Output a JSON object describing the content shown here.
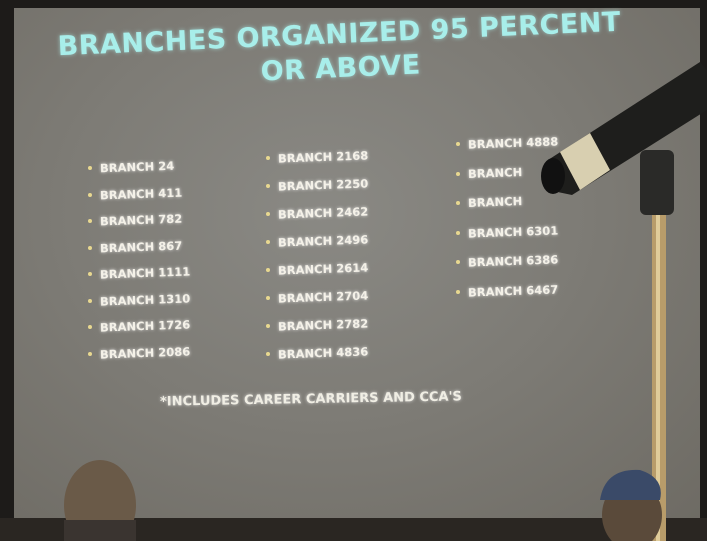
{
  "title": "BRANCHES ORGANIZED 95 PERCENT OR ABOVE",
  "columns": [
    [
      "BRANCH 24",
      "BRANCH 411",
      "BRANCH 782",
      "BRANCH 867",
      "BRANCH 1111",
      "BRANCH 1310",
      "BRANCH 1726",
      "BRANCH 2086"
    ],
    [
      "BRANCH 2168",
      "BRANCH 2250",
      "BRANCH 2462",
      "BRANCH 2496",
      "BRANCH 2614",
      "BRANCH 2704",
      "BRANCH 2782",
      "BRANCH 4836"
    ],
    [
      "BRANCH 4888",
      "BRANCH",
      "BRANCH",
      "BRANCH 6301",
      "BRANCH 6386",
      "BRANCH 6467"
    ]
  ],
  "footnote": "*INCLUDES CAREER CARRIERS AND CCA'S"
}
